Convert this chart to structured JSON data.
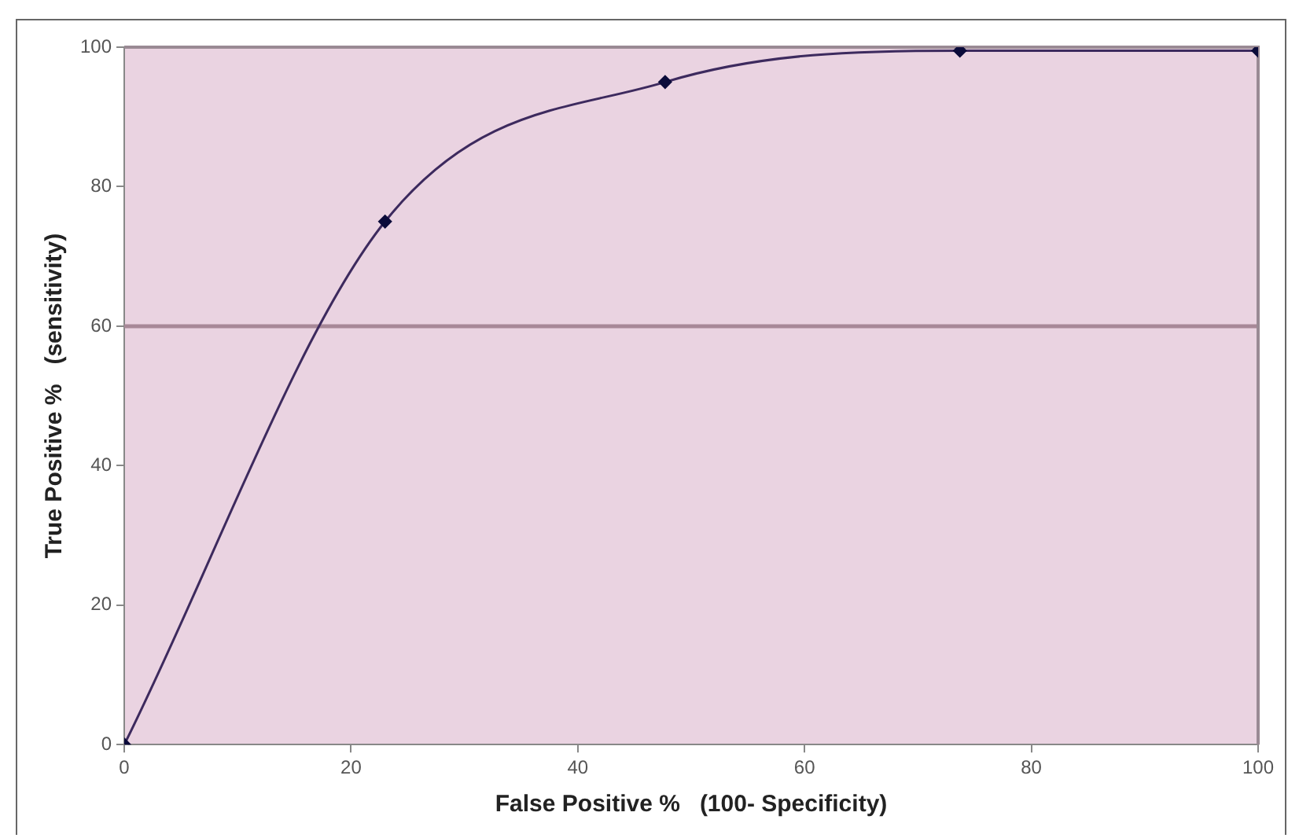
{
  "chart_data": {
    "type": "line",
    "xlabel": "False Positive %   (100- Specificity)",
    "ylabel": "True Positive %   (sensitivity)",
    "x": [
      0,
      23,
      47.7,
      73.7,
      100
    ],
    "series": [
      {
        "color": "#3d2a5e",
        "values": [
          0,
          75,
          95,
          99.5,
          99.5
        ]
      }
    ],
    "xlim": [
      0,
      100
    ],
    "xticks": [
      0,
      20,
      40,
      60,
      80,
      100
    ],
    "ylim": [
      0,
      100
    ],
    "yticks": [
      0,
      20,
      40,
      60,
      80,
      100
    ],
    "ref_lines": [
      {
        "axis": "y",
        "value": 60,
        "color": "#a88898"
      }
    ],
    "marker": "diamond",
    "line_style": "solid",
    "legend": false
  }
}
